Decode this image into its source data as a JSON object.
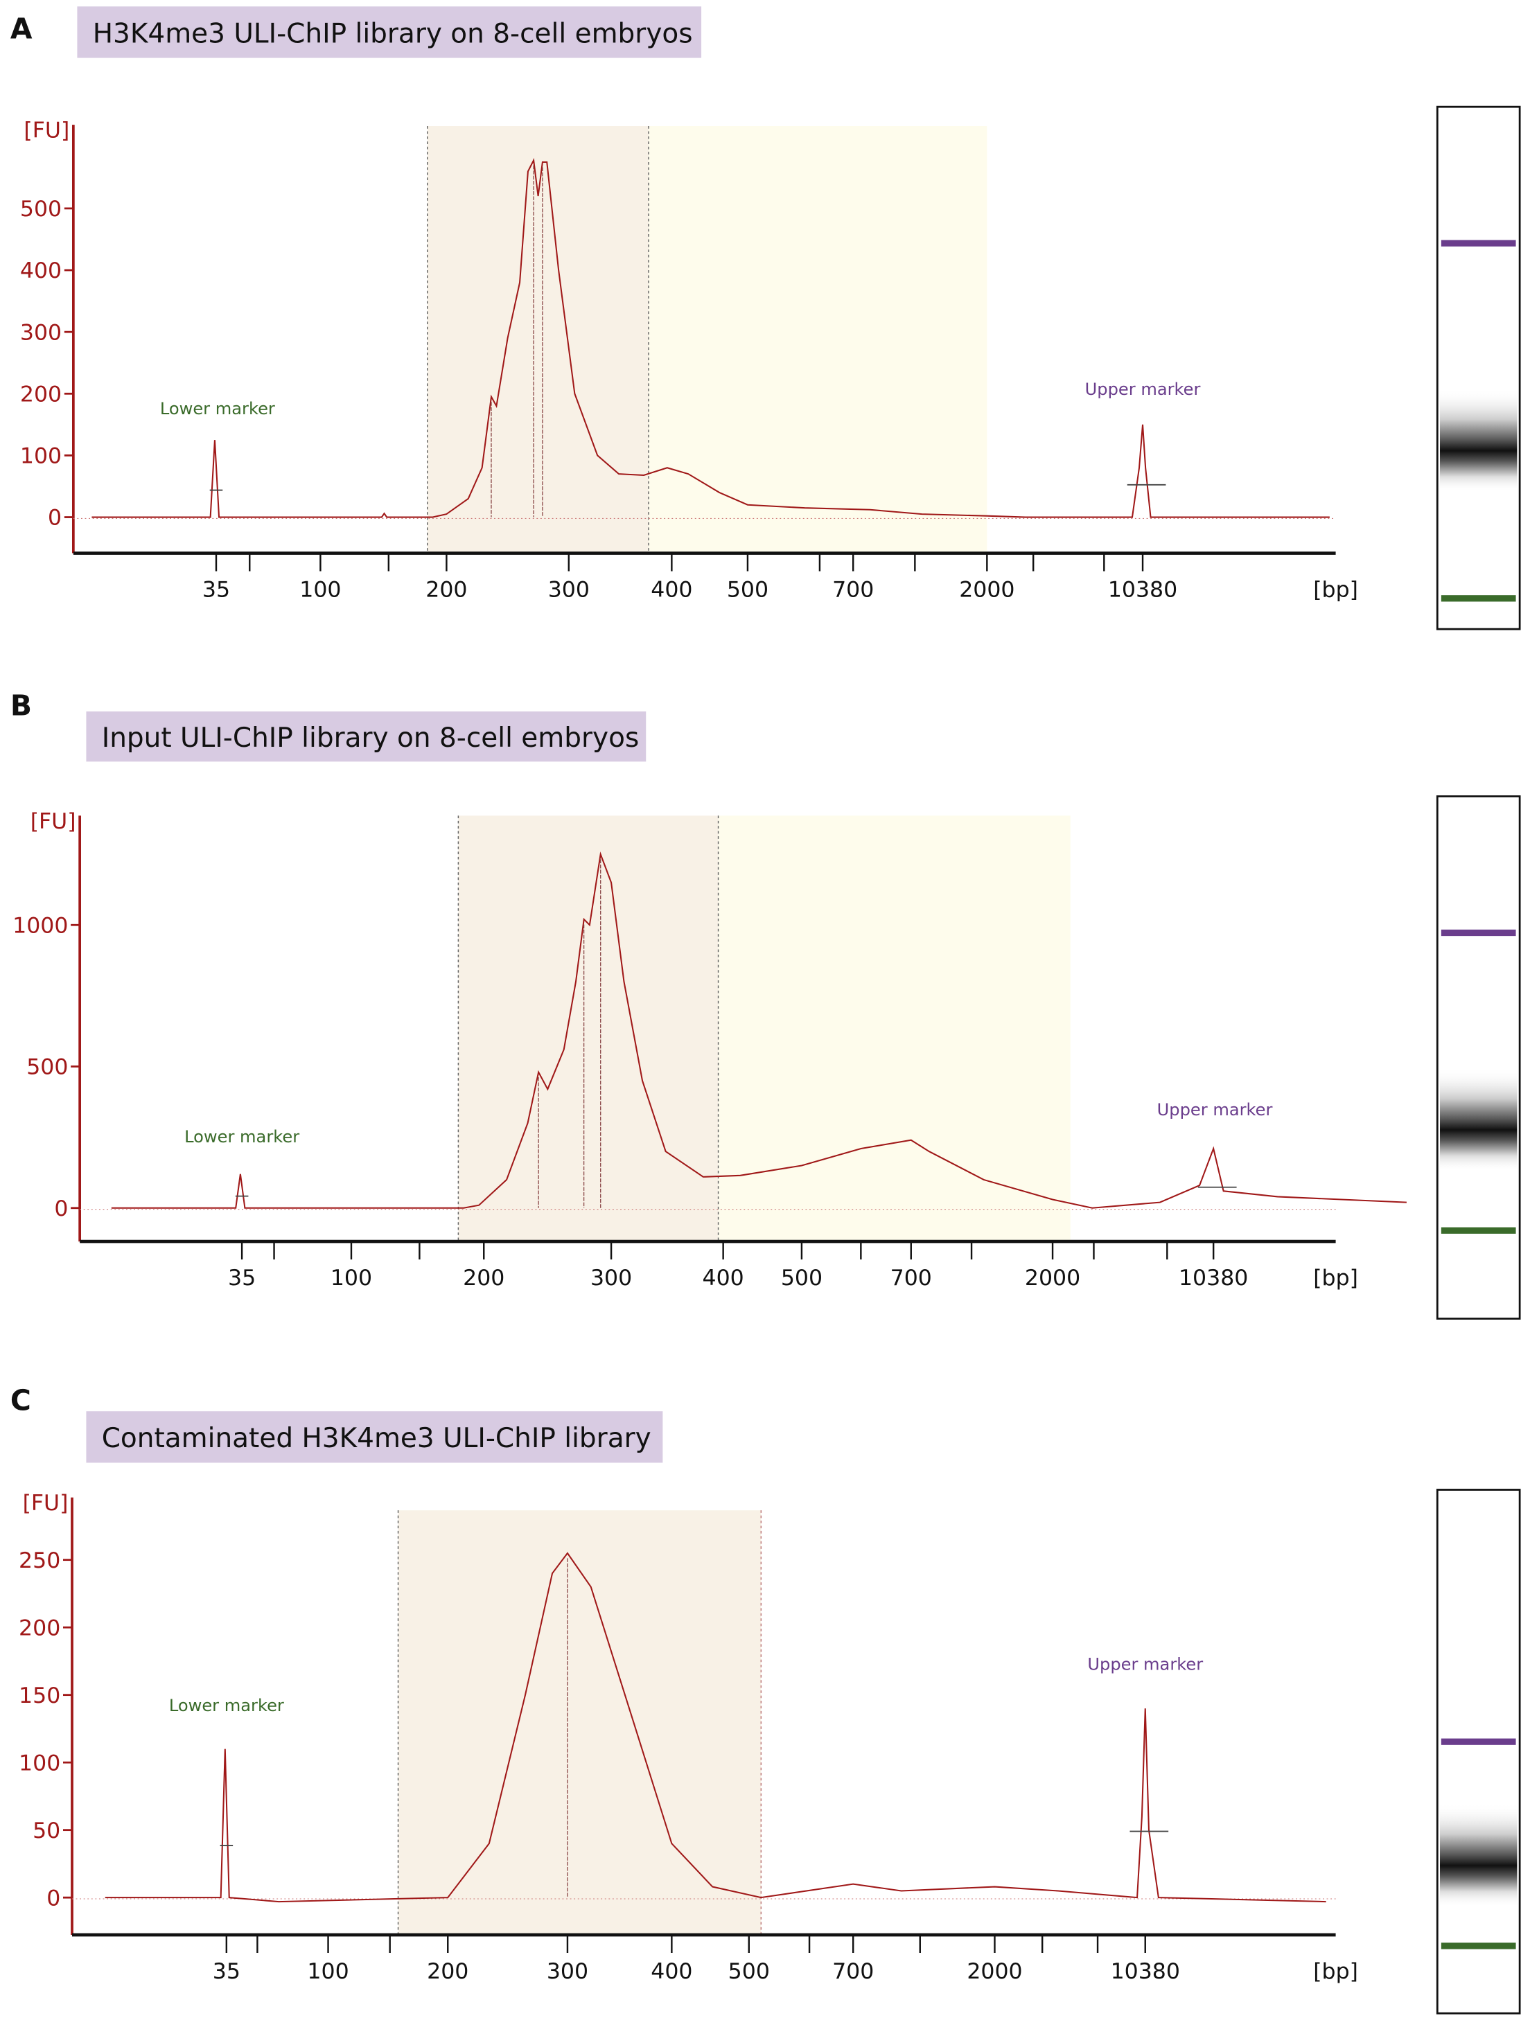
{
  "colors": {
    "axis": "#a01818",
    "trace": "#a01818",
    "title_box": "#d8cbe2",
    "region1": "#f8f1e6",
    "region2": "#fefcec",
    "lower_marker": "#3a6b2a",
    "upper_marker": "#6a3d8c"
  },
  "chart_data": [
    {
      "type": "line",
      "panel_letter": "A",
      "title": "H3K4me3 ULI-ChIP library on 8-cell embryos",
      "ylabel": "[FU]",
      "xlabel": "[bp]",
      "x_scale": "ladder (log-like)",
      "x_ticks": [
        35,
        100,
        200,
        300,
        400,
        500,
        700,
        2000,
        10380
      ],
      "y_ticks": [
        0,
        100,
        200,
        300,
        400,
        500
      ],
      "ylim": [
        -58,
        635
      ],
      "lower_marker_label": "Lower marker",
      "upper_marker_label": "Upper marker",
      "regions_bp": [
        [
          180,
          375
        ],
        [
          375,
          2000
        ]
      ],
      "points": [
        [
          10,
          0
        ],
        [
          33,
          0
        ],
        [
          34.5,
          125
        ],
        [
          36,
          0
        ],
        [
          140,
          0
        ],
        [
          142,
          6
        ],
        [
          144,
          0
        ],
        [
          185,
          0
        ],
        [
          200,
          5
        ],
        [
          215,
          30
        ],
        [
          225,
          80
        ],
        [
          232,
          195
        ],
        [
          236,
          180
        ],
        [
          245,
          290
        ],
        [
          255,
          380
        ],
        [
          262,
          560
        ],
        [
          267,
          578
        ],
        [
          271,
          520
        ],
        [
          275,
          575
        ],
        [
          279,
          575
        ],
        [
          290,
          400
        ],
        [
          305,
          200
        ],
        [
          325,
          100
        ],
        [
          345,
          70
        ],
        [
          370,
          68
        ],
        [
          395,
          80
        ],
        [
          420,
          70
        ],
        [
          460,
          40
        ],
        [
          500,
          20
        ],
        [
          600,
          15
        ],
        [
          800,
          12
        ],
        [
          1200,
          5
        ],
        [
          2000,
          2
        ],
        [
          3000,
          0
        ],
        [
          9300,
          0
        ],
        [
          10000,
          80
        ],
        [
          10380,
          150
        ],
        [
          10700,
          80
        ],
        [
          11300,
          0
        ],
        [
          75000,
          0
        ]
      ],
      "gel": {
        "upper_band": 0.26,
        "lower_band": 0.94,
        "sample_band": 0.66
      }
    },
    {
      "type": "line",
      "panel_letter": "B",
      "title": "Input ULI-ChIP library on 8-cell embryos",
      "ylabel": "[FU]",
      "xlabel": "[bp]",
      "x_scale": "ladder (log-like)",
      "x_ticks": [
        35,
        100,
        200,
        300,
        400,
        500,
        700,
        2000,
        10380
      ],
      "y_ticks": [
        0,
        500,
        1000
      ],
      "ylim": [
        -118,
        1386
      ],
      "lower_marker_label": "Lower marker",
      "upper_marker_label": "Upper marker",
      "regions_bp": [
        [
          175,
          395
        ],
        [
          395,
          2400
        ]
      ],
      "points": [
        [
          10,
          0
        ],
        [
          33,
          0
        ],
        [
          34.5,
          120
        ],
        [
          36,
          0
        ],
        [
          180,
          0
        ],
        [
          195,
          10
        ],
        [
          215,
          100
        ],
        [
          230,
          300
        ],
        [
          238,
          480
        ],
        [
          245,
          420
        ],
        [
          258,
          560
        ],
        [
          268,
          800
        ],
        [
          275,
          1020
        ],
        [
          280,
          1000
        ],
        [
          290,
          1250
        ],
        [
          300,
          1150
        ],
        [
          310,
          800
        ],
        [
          325,
          450
        ],
        [
          345,
          200
        ],
        [
          380,
          110
        ],
        [
          420,
          115
        ],
        [
          500,
          150
        ],
        [
          600,
          210
        ],
        [
          700,
          240
        ],
        [
          800,
          200
        ],
        [
          1200,
          100
        ],
        [
          2000,
          30
        ],
        [
          3000,
          0
        ],
        [
          6000,
          20
        ],
        [
          9000,
          80
        ],
        [
          10380,
          210
        ],
        [
          11500,
          60
        ],
        [
          20000,
          40
        ],
        [
          75000,
          20
        ]
      ],
      "gel": {
        "upper_band": 0.26,
        "lower_band": 0.83,
        "sample_band": 0.64
      }
    },
    {
      "type": "line",
      "panel_letter": "C",
      "title": "Contaminated H3K4me3 ULI-ChIP library",
      "ylabel": "[FU]",
      "xlabel": "[bp]",
      "x_scale": "ladder (log-like)",
      "x_ticks": [
        35,
        100,
        200,
        300,
        400,
        500,
        700,
        2000,
        10380
      ],
      "y_ticks": [
        0,
        50,
        100,
        150,
        200,
        250
      ],
      "ylim": [
        -28,
        295
      ],
      "lower_marker_label": "Lower marker",
      "upper_marker_label": "Upper marker",
      "regions_bp": [
        [
          150,
          520
        ]
      ],
      "points": [
        [
          10,
          0
        ],
        [
          33,
          0
        ],
        [
          34.5,
          110
        ],
        [
          36,
          0
        ],
        [
          60,
          -3
        ],
        [
          200,
          0
        ],
        [
          230,
          40
        ],
        [
          260,
          150
        ],
        [
          285,
          240
        ],
        [
          300,
          255
        ],
        [
          320,
          230
        ],
        [
          360,
          130
        ],
        [
          400,
          40
        ],
        [
          450,
          8
        ],
        [
          520,
          0
        ],
        [
          700,
          10
        ],
        [
          1000,
          5
        ],
        [
          2000,
          8
        ],
        [
          4000,
          5
        ],
        [
          9500,
          0
        ],
        [
          10000,
          60
        ],
        [
          10380,
          140
        ],
        [
          10800,
          50
        ],
        [
          12000,
          0
        ],
        [
          75000,
          -3
        ]
      ],
      "gel": {
        "upper_band": 0.48,
        "lower_band": 0.87,
        "sample_band": 0.72
      }
    }
  ]
}
